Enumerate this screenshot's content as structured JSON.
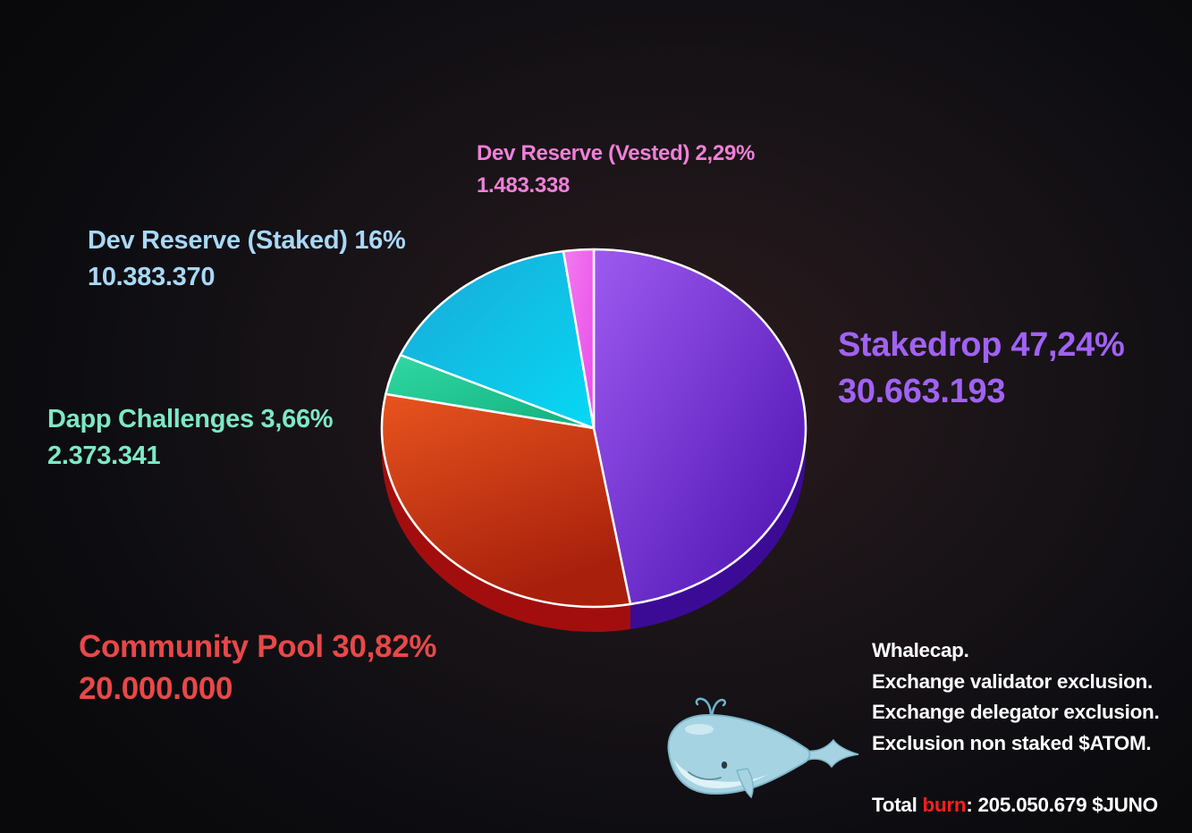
{
  "chart_data": {
    "type": "pie",
    "slices": [
      {
        "label": "Stakedrop",
        "percent": "47,24%",
        "amount": "30.663.193",
        "value": 47.24,
        "color": "#9a55e8",
        "text_color": "#a062f4"
      },
      {
        "label": "Community Pool",
        "percent": "30,82%",
        "amount": "20.000.000",
        "value": 30.82,
        "color": "#dc4620",
        "text_color": "#e84848"
      },
      {
        "label": "Dapp Challenges",
        "percent": "3,66%",
        "amount": "2.373.341",
        "value": 3.66,
        "color": "#22c894",
        "text_color": "#7ee8c4"
      },
      {
        "label": "Dev Reserve (Staked)",
        "percent": "16%",
        "amount": "10.383.370",
        "value": 16.0,
        "color": "#22c4ec",
        "text_color": "#a8d8f8"
      },
      {
        "label": "Dev Reserve (Vested)",
        "percent": "2,29%",
        "amount": "1.483.338",
        "value": 2.29,
        "color": "#f060ec",
        "text_color": "#f080d8"
      }
    ]
  },
  "labels": {
    "stakedrop": {
      "title": "Stakedrop 47,24%",
      "amount": "30.663.193"
    },
    "community": {
      "title": "Community Pool 30,82%",
      "amount": "20.000.000"
    },
    "dapp": {
      "title": "Dapp Challenges 3,66%",
      "amount": "2.373.341"
    },
    "staked": {
      "title": "Dev Reserve (Staked) 16%",
      "amount": "10.383.370"
    },
    "vested": {
      "title": "Dev Reserve (Vested) 2,29%",
      "amount": "1.483.338"
    }
  },
  "notes": {
    "line1": "Whalecap.",
    "line2": "Exchange validator exclusion.",
    "line3": "Exchange delegator exclusion.",
    "line4": "Exclusion non staked $ATOM.",
    "burn_prefix": "Total ",
    "burn_word": "burn",
    "burn_suffix": ": 205.050.679 $JUNO"
  },
  "colors": {
    "burn": "#ff1e1e",
    "whale_body": "#a6d3e2",
    "whale_belly": "#dff2f7"
  },
  "icons": {
    "whale": "whale-icon"
  }
}
